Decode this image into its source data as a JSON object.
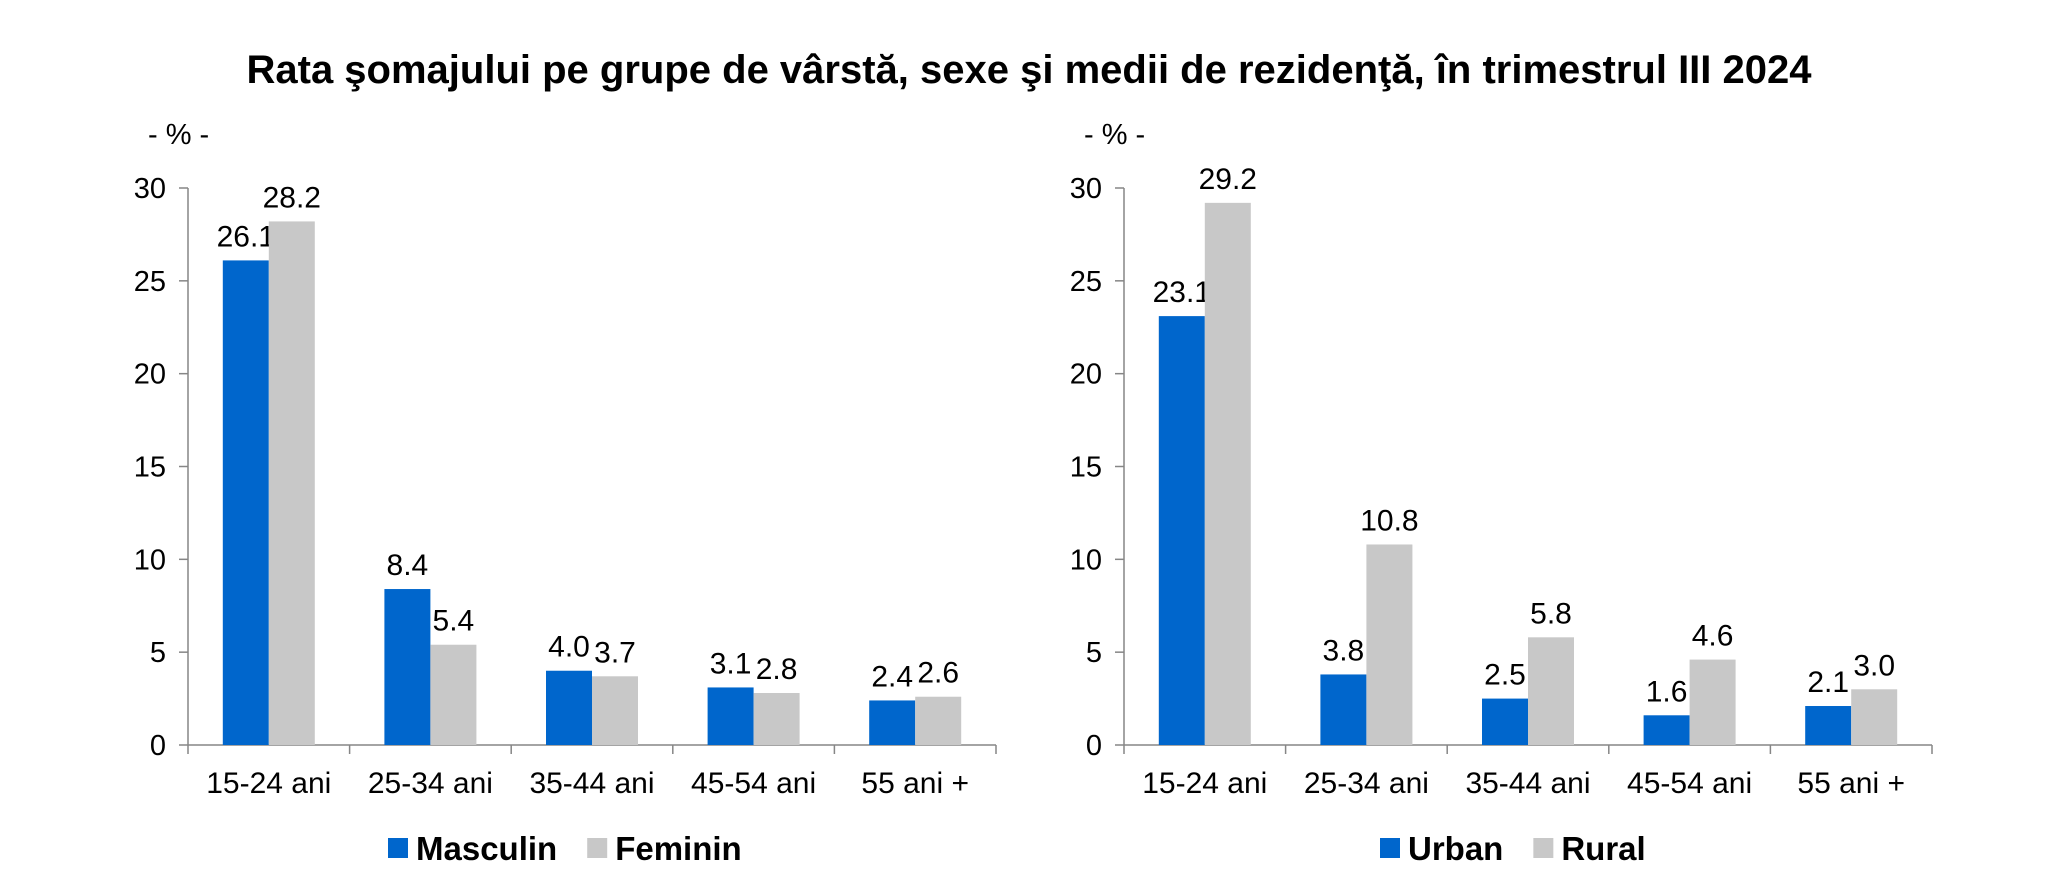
{
  "title": "Rata şomajului pe grupe de vârstă, sexe şi medii de rezidenţă, în trimestrul III 2024",
  "chart_data": [
    {
      "type": "bar",
      "unit_label": "- % -",
      "categories": [
        "15-24 ani",
        "25-34 ani",
        "35-44 ani",
        "45-54 ani",
        "55 ani +"
      ],
      "series": [
        {
          "name": "Masculin",
          "color": "#0066CC",
          "values": [
            26.1,
            8.4,
            4.0,
            3.1,
            2.4
          ],
          "labels": [
            "26.1",
            "8.4",
            "4.0",
            "3.1",
            "2.4"
          ]
        },
        {
          "name": "Feminin",
          "color": "#C8C8C8",
          "values": [
            28.2,
            5.4,
            3.7,
            2.8,
            2.6
          ],
          "labels": [
            "28.2",
            "5.4",
            "3.7",
            "2.8",
            "2.6"
          ]
        }
      ],
      "ylim": [
        0,
        30
      ],
      "yticks": [
        "0",
        "5",
        "10",
        "15",
        "20",
        "25",
        "30"
      ],
      "grid": false,
      "legend_position": "bottom"
    },
    {
      "type": "bar",
      "unit_label": "- % -",
      "categories": [
        "15-24 ani",
        "25-34 ani",
        "35-44 ani",
        "45-54 ani",
        "55 ani +"
      ],
      "series": [
        {
          "name": "Urban",
          "color": "#0066CC",
          "values": [
            23.1,
            3.8,
            2.5,
            1.6,
            2.1
          ],
          "labels": [
            "23.1",
            "3.8",
            "2.5",
            "1.6",
            "2.1"
          ]
        },
        {
          "name": "Rural",
          "color": "#C8C8C8",
          "values": [
            29.2,
            10.8,
            5.8,
            4.6,
            3.0
          ],
          "labels": [
            "29.2",
            "10.8",
            "5.8",
            "4.6",
            "3.0"
          ]
        }
      ],
      "ylim": [
        0,
        30
      ],
      "yticks": [
        "0",
        "5",
        "10",
        "15",
        "20",
        "25",
        "30"
      ],
      "grid": false,
      "legend_position": "bottom"
    }
  ]
}
